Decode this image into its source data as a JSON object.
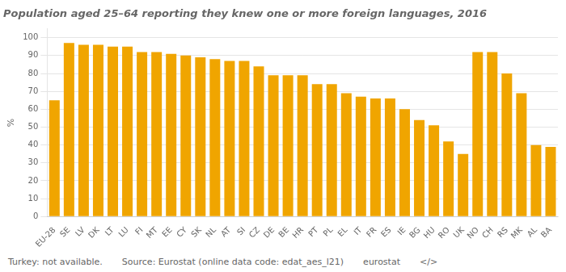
{
  "chart_data": {
    "type": "bar",
    "title": "Population aged 25–64 reporting they knew one or more foreign languages, 2016",
    "ylabel": "%",
    "categories": [
      "EU-28",
      "SE",
      "LV",
      "DK",
      "LT",
      "LU",
      "FI",
      "MT",
      "EE",
      "CY",
      "SK",
      "NL",
      "AT",
      "SI",
      "CZ",
      "DE",
      "BE",
      "HR",
      "PT",
      "PL",
      "EL",
      "IT",
      "FR",
      "ES",
      "IE",
      "BG",
      "HU",
      "RO",
      "UK",
      "NO",
      "CH",
      "RS",
      "MK",
      "AL",
      "BA"
    ],
    "values": [
      65,
      97,
      96,
      96,
      95,
      95,
      92,
      92,
      91,
      90,
      89,
      88,
      87,
      87,
      84,
      79,
      79,
      79,
      74,
      74,
      69,
      67,
      66,
      66,
      60,
      54,
      51,
      42,
      35,
      92,
      92,
      80,
      69,
      40,
      39
    ],
    "color": "#F0A500",
    "ylim": [
      0,
      105
    ],
    "yticks": [
      0,
      10,
      20,
      30,
      40,
      50,
      60,
      70,
      80,
      90,
      100
    ],
    "grid": true,
    "annotations": [
      "Turkey: not available.",
      "Source: Eurostat (online data code: edat_aes_l21)",
      "eurostat",
      "</>"
    ]
  }
}
